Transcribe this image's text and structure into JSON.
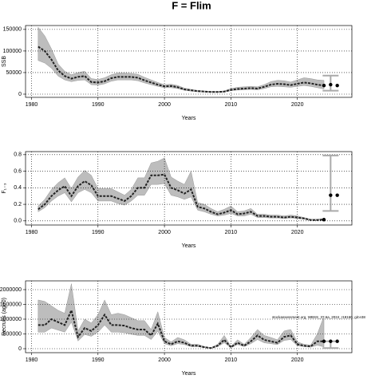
{
  "title": "F = Flim",
  "annotation": "stockassessment.org, WBSS_37.6a_2024_r18160, git:e38",
  "chart_data": [
    {
      "type": "line",
      "ylabel": "SSB",
      "xlabel": "Years",
      "color": "#222222",
      "band_color": "#bdbdbd",
      "interval_color": "#aaaaaa",
      "grid": true,
      "xlim": [
        1979.1,
        2028.2
      ],
      "xticks": [
        1980,
        1990,
        2000,
        2010,
        2020
      ],
      "ylim": [
        -7400,
        159000
      ],
      "yticks": [
        0,
        50000,
        100000,
        150000
      ],
      "x": [
        1981,
        1982,
        1983,
        1984,
        1985,
        1986,
        1987,
        1988,
        1989,
        1990,
        1991,
        1992,
        1993,
        1994,
        1995,
        1996,
        1997,
        1998,
        1999,
        2000,
        2001,
        2002,
        2003,
        2004,
        2005,
        2006,
        2007,
        2008,
        2009,
        2010,
        2011,
        2012,
        2013,
        2014,
        2015,
        2016,
        2017,
        2018,
        2019,
        2020,
        2021,
        2022,
        2023,
        2024
      ],
      "values": [
        110000,
        100000,
        80000,
        55000,
        42000,
        36000,
        40000,
        42000,
        28000,
        27000,
        30000,
        37000,
        40000,
        40000,
        40000,
        38000,
        32000,
        27000,
        22000,
        18000,
        19000,
        16000,
        11000,
        9000,
        7000,
        6000,
        5000,
        5000,
        6000,
        10000,
        12000,
        13000,
        14000,
        13000,
        17000,
        22000,
        24000,
        23000,
        21000,
        24000,
        27000,
        25000,
        22000,
        20000
      ],
      "low": [
        78000,
        72000,
        60000,
        42000,
        33000,
        29000,
        32000,
        33000,
        22000,
        21000,
        24000,
        30000,
        33000,
        33000,
        33000,
        31000,
        26000,
        22000,
        18000,
        15000,
        15000,
        13000,
        9000,
        7000,
        5500,
        4700,
        4000,
        4000,
        4700,
        8000,
        9500,
        10000,
        11000,
        10000,
        13000,
        17000,
        18000,
        17000,
        16000,
        18000,
        20000,
        18000,
        15000,
        12000
      ],
      "high": [
        155000,
        135000,
        105000,
        70000,
        53000,
        45000,
        50000,
        53000,
        36000,
        34000,
        38000,
        45000,
        49000,
        49000,
        48000,
        46000,
        39000,
        33000,
        27000,
        22000,
        23000,
        20000,
        14000,
        11000,
        8800,
        7500,
        6500,
        6300,
        7500,
        13000,
        16000,
        17000,
        18000,
        17000,
        22000,
        29000,
        32000,
        31000,
        28000,
        33000,
        38000,
        36000,
        33000,
        32000
      ],
      "forecast_x": [
        2024,
        2025,
        2026
      ],
      "forecast_values": [
        20000,
        22000,
        20000
      ],
      "interval": {
        "x": 2025,
        "low": 8000,
        "high": 43000
      }
    },
    {
      "type": "line",
      "ylabel": "F₁₋₃",
      "xlabel": "Years",
      "color": "#222222",
      "band_color": "#bdbdbd",
      "interval_color": "#aaaaaa",
      "grid": true,
      "xlim": [
        1979.1,
        2028.2
      ],
      "xticks": [
        1980,
        1990,
        2000,
        2010,
        2020
      ],
      "ylim": [
        -0.05,
        0.837
      ],
      "yticks": [
        {
          "value": 0,
          "label": "0.0"
        },
        0.2,
        0.4,
        0.6,
        0.8
      ],
      "x": [
        1981,
        1982,
        1983,
        1984,
        1985,
        1986,
        1987,
        1988,
        1989,
        1990,
        1991,
        1992,
        1993,
        1994,
        1995,
        1996,
        1997,
        1998,
        1999,
        2000,
        2001,
        2002,
        2003,
        2004,
        2005,
        2006,
        2007,
        2008,
        2009,
        2010,
        2011,
        2012,
        2013,
        2014,
        2015,
        2016,
        2017,
        2018,
        2019,
        2020,
        2021,
        2022,
        2023,
        2024
      ],
      "values": [
        0.14,
        0.2,
        0.3,
        0.37,
        0.42,
        0.3,
        0.42,
        0.48,
        0.43,
        0.3,
        0.3,
        0.3,
        0.27,
        0.24,
        0.3,
        0.4,
        0.4,
        0.55,
        0.55,
        0.56,
        0.4,
        0.37,
        0.33,
        0.38,
        0.17,
        0.15,
        0.11,
        0.08,
        0.1,
        0.13,
        0.08,
        0.09,
        0.11,
        0.06,
        0.06,
        0.05,
        0.05,
        0.04,
        0.05,
        0.04,
        0.03,
        0.01,
        0.01,
        0.015
      ],
      "low": [
        0.11,
        0.16,
        0.24,
        0.3,
        0.34,
        0.23,
        0.34,
        0.38,
        0.34,
        0.24,
        0.24,
        0.24,
        0.21,
        0.19,
        0.24,
        0.31,
        0.31,
        0.44,
        0.44,
        0.45,
        0.31,
        0.29,
        0.26,
        0.29,
        0.13,
        0.11,
        0.08,
        0.06,
        0.07,
        0.09,
        0.06,
        0.06,
        0.08,
        0.04,
        0.04,
        0.035,
        0.035,
        0.03,
        0.035,
        0.03,
        0.02,
        0.007,
        0.007,
        0.01
      ],
      "high": [
        0.18,
        0.26,
        0.38,
        0.46,
        0.52,
        0.39,
        0.53,
        0.61,
        0.55,
        0.39,
        0.39,
        0.39,
        0.35,
        0.31,
        0.38,
        0.52,
        0.52,
        0.7,
        0.72,
        0.76,
        0.53,
        0.48,
        0.44,
        0.6,
        0.22,
        0.2,
        0.15,
        0.11,
        0.14,
        0.18,
        0.11,
        0.12,
        0.15,
        0.08,
        0.08,
        0.07,
        0.07,
        0.06,
        0.07,
        0.06,
        0.04,
        0.02,
        0.02,
        0.03
      ],
      "forecast_x": [
        2024,
        2025,
        2026
      ],
      "forecast_values": [
        0.015,
        0.31,
        0.31
      ],
      "interval": {
        "x": 2025,
        "low": 0.12,
        "high": 0.79
      }
    },
    {
      "type": "line",
      "ylabel": "Recruits (age0)",
      "xlabel": "Years",
      "color": "#222222",
      "band_color": "#bdbdbd",
      "interval_color": "#aaaaaa",
      "grid": true,
      "xlim": [
        1979.1,
        2028.2
      ],
      "xticks": [
        1980,
        1990,
        2000,
        2010,
        2020
      ],
      "ylim": [
        -135000,
        2297000
      ],
      "yticks": [
        0,
        500000,
        1000000,
        1500000,
        2000000
      ],
      "x": [
        1981,
        1982,
        1983,
        1984,
        1985,
        1986,
        1987,
        1988,
        1989,
        1990,
        1991,
        1992,
        1993,
        1994,
        1995,
        1996,
        1997,
        1998,
        1999,
        2000,
        2001,
        2002,
        2003,
        2004,
        2005,
        2006,
        2007,
        2008,
        2009,
        2010,
        2011,
        2012,
        2013,
        2014,
        2015,
        2016,
        2017,
        2018,
        2019,
        2020,
        2021,
        2022,
        2023,
        2024
      ],
      "values": [
        800000,
        800000,
        1000000,
        900000,
        800000,
        1300000,
        400000,
        700000,
        600000,
        800000,
        1150000,
        800000,
        800000,
        780000,
        700000,
        650000,
        650000,
        450000,
        850000,
        250000,
        150000,
        250000,
        200000,
        100000,
        100000,
        50000,
        20000,
        100000,
        300000,
        50000,
        200000,
        100000,
        250000,
        450000,
        300000,
        250000,
        200000,
        400000,
        450000,
        150000,
        100000,
        80000,
        250000,
        250000
      ],
      "low": [
        560000,
        560000,
        700000,
        630000,
        560000,
        900000,
        260000,
        480000,
        420000,
        560000,
        800000,
        560000,
        560000,
        540000,
        490000,
        450000,
        450000,
        310000,
        590000,
        170000,
        100000,
        170000,
        140000,
        70000,
        70000,
        35000,
        14000,
        70000,
        200000,
        35000,
        140000,
        70000,
        170000,
        310000,
        200000,
        170000,
        140000,
        280000,
        310000,
        100000,
        70000,
        50000,
        120000,
        60000
      ],
      "high": [
        1650000,
        1600000,
        1450000,
        1300000,
        1200000,
        2200000,
        600000,
        1000000,
        870000,
        1150000,
        1650000,
        1150000,
        1200000,
        1150000,
        1050000,
        950000,
        950000,
        650000,
        1250000,
        380000,
        230000,
        380000,
        300000,
        150000,
        150000,
        75000,
        30000,
        150000,
        450000,
        80000,
        300000,
        150000,
        380000,
        650000,
        450000,
        380000,
        300000,
        600000,
        650000,
        230000,
        150000,
        120000,
        500000,
        1100000
      ],
      "forecast_x": [
        2024,
        2025,
        2026
      ],
      "forecast_values": [
        250000,
        250000,
        250000
      ],
      "interval": {
        "x": 2025,
        "low": 20000,
        "high": 250000
      }
    }
  ]
}
